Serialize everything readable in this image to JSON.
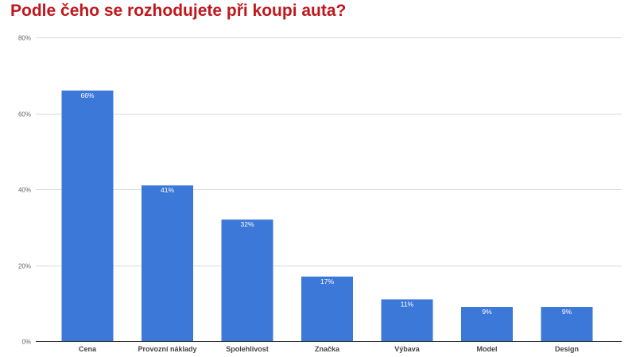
{
  "title": "Podle čeho se rozhodujete při koupi auta?",
  "chart_data": {
    "type": "bar",
    "title": "Podle čeho se rozhodujete při koupi auta?",
    "categories": [
      "Cena",
      "Provozní náklady",
      "Spolehlivost",
      "Značka",
      "Výbava",
      "Model",
      "Design"
    ],
    "values": [
      66,
      41,
      32,
      17,
      11,
      9,
      9
    ],
    "data_labels": [
      "66%",
      "41%",
      "32%",
      "17%",
      "11%",
      "9%",
      "9%"
    ],
    "xlabel": "",
    "ylabel": "",
    "ylim": [
      0,
      80
    ],
    "yticks": [
      0,
      20,
      40,
      60,
      80
    ],
    "ytick_labels": [
      "0%",
      "20%",
      "40%",
      "60%",
      "80%"
    ],
    "grid": true,
    "legend": "none",
    "bar_color": "#3c78d8",
    "title_color": "#c0171c"
  }
}
